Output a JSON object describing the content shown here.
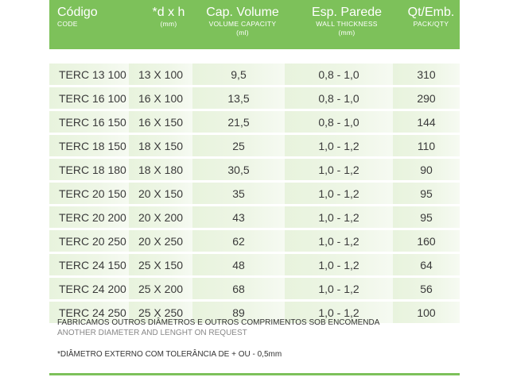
{
  "header": {
    "columns": [
      {
        "title": "Código",
        "subtitle": "CODE"
      },
      {
        "title": "*d x h",
        "subtitle": "(mm)"
      },
      {
        "title": "Cap. Volume",
        "subtitle": "VOLUME CAPACITY",
        "subtitle2": "(ml)"
      },
      {
        "title": "Esp. Parede",
        "subtitle": "WALL THICKNESS",
        "subtitle2": "(mm)"
      },
      {
        "title": "Qt/Emb.",
        "subtitle": "PACK/QTY"
      }
    ]
  },
  "rows": [
    {
      "code": "TERC 13 100",
      "dims": "13 X 100",
      "volume": "9,5",
      "wall": "0,8 - 1,0",
      "qty": "310"
    },
    {
      "code": "TERC 16 100",
      "dims": "16 X 100",
      "volume": "13,5",
      "wall": "0,8 - 1,0",
      "qty": "290"
    },
    {
      "code": "TERC 16 150",
      "dims": "16 X 150",
      "volume": "21,5",
      "wall": "0,8 - 1,0",
      "qty": "144"
    },
    {
      "code": "TERC 18 150",
      "dims": "18 X 150",
      "volume": "25",
      "wall": "1,0 - 1,2",
      "qty": "110"
    },
    {
      "code": "TERC 18 180",
      "dims": "18 X 180",
      "volume": "30,5",
      "wall": "1,0 - 1,2",
      "qty": "90"
    },
    {
      "code": "TERC 20 150",
      "dims": "20 X 150",
      "volume": "35",
      "wall": "1,0 - 1,2",
      "qty": "95"
    },
    {
      "code": "TERC 20 200",
      "dims": "20 X 200",
      "volume": "43",
      "wall": "1,0 - 1,2",
      "qty": "95"
    },
    {
      "code": "TERC 20 250",
      "dims": "20 X 250",
      "volume": "62",
      "wall": "1,0 - 1,2",
      "qty": "160"
    },
    {
      "code": "TERC 24 150",
      "dims": "25 X 150",
      "volume": "48",
      "wall": "1,0 - 1,2",
      "qty": "64"
    },
    {
      "code": "TERC 24 200",
      "dims": "25 X 200",
      "volume": "68",
      "wall": "1,0 - 1,2",
      "qty": "56"
    },
    {
      "code": "TERC 24 250",
      "dims": "25 X 250",
      "volume": "89",
      "wall": "1,0 - 1,2",
      "qty": "100"
    }
  ],
  "notes": {
    "line1": "FABRICAMOS OUTROS DIÂMETROS E OUTROS COMPRIMENTOS SOB ENCOMENDA",
    "line2": "ANOTHER DIAMETER AND LENGHT ON REQUEST",
    "line3": "*DIÂMETRO EXTERNO COM TOLERÂNCIA DE + OU - 0,5mm"
  },
  "colors": {
    "header_green": "#7dc15a",
    "row_tint": "#e8f3dd"
  }
}
